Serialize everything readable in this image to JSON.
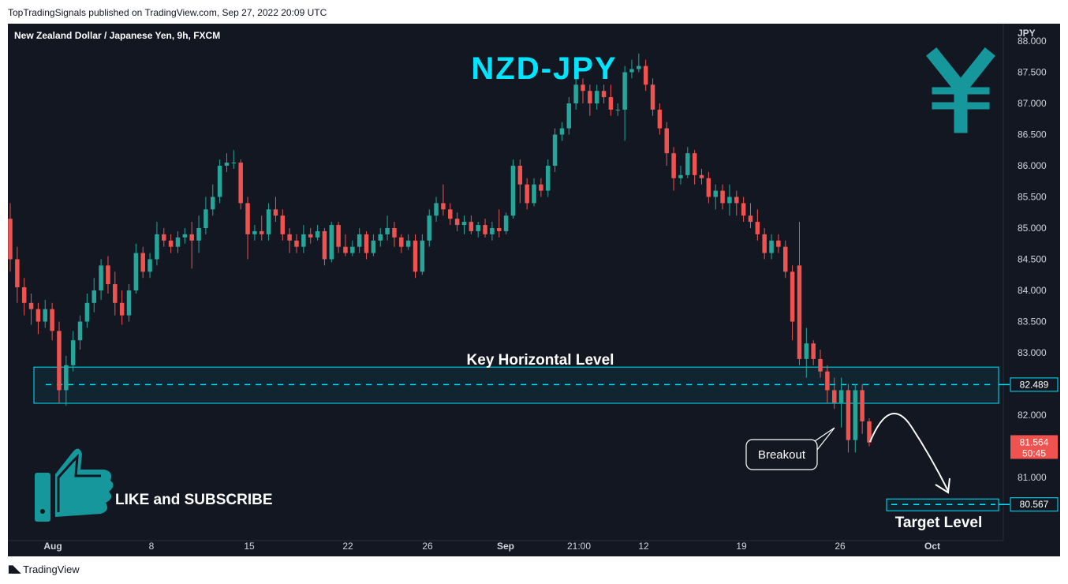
{
  "header": {
    "published_caption": "TopTradingSignals published on TradingView.com, Sep 27, 2022 20:09 UTC"
  },
  "footer": {
    "brand": "TradingView"
  },
  "colors": {
    "background": "#131722",
    "up": "#26a69a",
    "down": "#ef5350",
    "accent": "#00e5ff",
    "text": "#d1d4dc",
    "yen": "#15979b"
  },
  "icons": {
    "yen_symbol": "yen-icon",
    "thumbs_up": "thumbs-up-icon",
    "brand_logo": "tradingview-logo-icon"
  },
  "chart_data": {
    "type": "candlestick",
    "symbol_title": "New Zealand Dollar / Japanese Yen, 9h, FXCM",
    "headline": "NZD-JPY",
    "currency": "JPY",
    "y_ticks": [
      "88.000",
      "87.500",
      "87.000",
      "86.500",
      "86.000",
      "85.500",
      "85.000",
      "84.500",
      "84.000",
      "83.500",
      "83.000",
      "82.000",
      "81.000"
    ],
    "x_ticks": [
      "Aug",
      "8",
      "15",
      "22",
      "26",
      "Sep",
      "21:00",
      "12",
      "19",
      "26",
      "Oct"
    ],
    "ylim": [
      80.0,
      88.0
    ],
    "candles": [
      [
        85.15,
        84.5,
        85.4,
        84.3
      ],
      [
        84.5,
        84.05,
        84.7,
        83.8
      ],
      [
        84.05,
        83.8,
        84.2,
        83.6
      ],
      [
        83.8,
        83.7,
        83.95,
        83.45
      ],
      [
        83.7,
        83.5,
        83.8,
        83.3
      ],
      [
        83.5,
        83.7,
        83.85,
        83.4
      ],
      [
        83.7,
        83.35,
        83.8,
        83.2
      ],
      [
        83.35,
        82.4,
        83.5,
        82.2
      ],
      [
        82.4,
        82.8,
        82.95,
        82.15
      ],
      [
        82.8,
        83.2,
        83.35,
        82.7
      ],
      [
        83.2,
        83.5,
        83.6,
        83.05
      ],
      [
        83.5,
        83.8,
        83.95,
        83.4
      ],
      [
        83.8,
        84.0,
        84.2,
        83.65
      ],
      [
        84.0,
        84.4,
        84.5,
        83.85
      ],
      [
        84.4,
        84.1,
        84.55,
        83.95
      ],
      [
        84.1,
        83.8,
        84.3,
        83.6
      ],
      [
        83.8,
        83.6,
        84.0,
        83.45
      ],
      [
        83.6,
        84.0,
        84.1,
        83.5
      ],
      [
        84.0,
        84.6,
        84.75,
        83.95
      ],
      [
        84.6,
        84.3,
        84.7,
        84.2
      ],
      [
        84.3,
        84.5,
        84.6,
        84.2
      ],
      [
        84.5,
        84.9,
        85.1,
        84.4
      ],
      [
        84.9,
        84.8,
        85.0,
        84.7
      ],
      [
        84.8,
        84.7,
        84.9,
        84.6
      ],
      [
        84.7,
        84.85,
        84.95,
        84.6
      ],
      [
        84.85,
        84.9,
        85.0,
        84.75
      ],
      [
        84.9,
        84.8,
        85.1,
        84.35
      ],
      [
        84.8,
        85.0,
        85.2,
        84.6
      ],
      [
        85.0,
        85.3,
        85.5,
        84.9
      ],
      [
        85.3,
        85.5,
        85.7,
        85.2
      ],
      [
        85.5,
        86.0,
        86.1,
        85.4
      ],
      [
        86.0,
        86.05,
        86.2,
        85.9
      ],
      [
        86.05,
        86.05,
        86.25,
        85.95
      ],
      [
        86.05,
        85.4,
        86.1,
        85.3
      ],
      [
        85.4,
        84.9,
        85.5,
        84.5
      ],
      [
        84.9,
        84.95,
        85.05,
        84.8
      ],
      [
        84.95,
        84.9,
        85.2,
        84.8
      ],
      [
        84.9,
        85.3,
        85.4,
        84.8
      ],
      [
        85.3,
        85.2,
        85.5,
        85.1
      ],
      [
        85.2,
        84.9,
        85.3,
        84.8
      ],
      [
        84.9,
        84.8,
        85.0,
        84.6
      ],
      [
        84.8,
        84.7,
        84.9,
        84.6
      ],
      [
        84.7,
        84.9,
        85.05,
        84.6
      ],
      [
        84.9,
        84.85,
        85.0,
        84.75
      ],
      [
        84.85,
        84.95,
        85.05,
        84.8
      ],
      [
        84.95,
        84.5,
        85.0,
        84.4
      ],
      [
        84.5,
        85.05,
        85.1,
        84.45
      ],
      [
        85.05,
        84.7,
        85.1,
        84.6
      ],
      [
        84.7,
        84.6,
        84.9,
        84.55
      ],
      [
        84.6,
        84.7,
        84.8,
        84.55
      ],
      [
        84.7,
        84.9,
        85.0,
        84.6
      ],
      [
        84.9,
        84.6,
        84.95,
        84.5
      ],
      [
        84.6,
        84.8,
        84.9,
        84.55
      ],
      [
        84.8,
        84.9,
        85.0,
        84.7
      ],
      [
        84.9,
        85.0,
        85.2,
        84.8
      ],
      [
        85.0,
        84.85,
        85.1,
        84.7
      ],
      [
        84.85,
        84.7,
        84.9,
        84.6
      ],
      [
        84.7,
        84.8,
        84.9,
        84.65
      ],
      [
        84.8,
        84.3,
        84.9,
        84.2
      ],
      [
        84.3,
        84.8,
        84.9,
        84.25
      ],
      [
        84.8,
        85.2,
        85.3,
        84.7
      ],
      [
        85.2,
        85.4,
        85.5,
        85.1
      ],
      [
        85.4,
        85.3,
        85.7,
        85.2
      ],
      [
        85.3,
        85.15,
        85.4,
        85.05
      ],
      [
        85.15,
        85.05,
        85.25,
        84.95
      ],
      [
        85.05,
        85.1,
        85.2,
        84.9
      ],
      [
        85.1,
        84.95,
        85.2,
        84.9
      ],
      [
        84.95,
        85.05,
        85.1,
        84.85
      ],
      [
        85.05,
        84.9,
        85.15,
        84.85
      ],
      [
        84.9,
        85.0,
        85.1,
        84.8
      ],
      [
        85.0,
        84.95,
        85.3,
        84.85
      ],
      [
        84.95,
        85.2,
        85.25,
        84.9
      ],
      [
        85.2,
        86.0,
        86.1,
        85.15
      ],
      [
        86.0,
        85.7,
        86.1,
        85.4
      ],
      [
        85.7,
        85.4,
        85.8,
        85.3
      ],
      [
        85.4,
        85.7,
        85.8,
        85.35
      ],
      [
        85.7,
        85.6,
        85.8,
        85.5
      ],
      [
        85.6,
        86.0,
        86.1,
        85.5
      ],
      [
        86.0,
        86.5,
        86.6,
        85.9
      ],
      [
        86.5,
        86.6,
        86.7,
        86.4
      ],
      [
        86.6,
        87.0,
        87.1,
        86.5
      ],
      [
        87.0,
        87.3,
        87.5,
        86.9
      ],
      [
        87.3,
        87.2,
        87.4,
        87.0
      ],
      [
        87.2,
        87.0,
        87.3,
        86.8
      ],
      [
        87.0,
        87.2,
        87.3,
        86.9
      ],
      [
        87.2,
        87.1,
        87.3,
        87.0
      ],
      [
        87.1,
        86.9,
        87.3,
        86.8
      ],
      [
        86.9,
        86.9,
        87.0,
        86.8
      ],
      [
        86.9,
        87.5,
        87.6,
        86.4
      ],
      [
        87.5,
        87.55,
        87.7,
        87.4
      ],
      [
        87.55,
        87.6,
        87.8,
        87.5
      ],
      [
        87.6,
        87.3,
        87.7,
        87.2
      ],
      [
        87.3,
        86.9,
        87.4,
        86.8
      ],
      [
        86.9,
        86.6,
        87.0,
        86.5
      ],
      [
        86.6,
        86.2,
        86.7,
        86.0
      ],
      [
        86.2,
        85.8,
        86.3,
        85.6
      ],
      [
        85.8,
        85.85,
        86.0,
        85.7
      ],
      [
        85.85,
        86.2,
        86.3,
        85.8
      ],
      [
        86.2,
        85.85,
        86.25,
        85.7
      ],
      [
        85.85,
        85.8,
        85.95,
        85.7
      ],
      [
        85.8,
        85.5,
        85.9,
        85.4
      ],
      [
        85.5,
        85.6,
        85.7,
        85.3
      ],
      [
        85.6,
        85.4,
        85.7,
        85.3
      ],
      [
        85.4,
        85.5,
        85.7,
        85.2
      ],
      [
        85.5,
        85.4,
        85.6,
        85.2
      ],
      [
        85.4,
        85.2,
        85.5,
        85.1
      ],
      [
        85.2,
        85.1,
        85.4,
        85.0
      ],
      [
        85.1,
        84.9,
        85.3,
        84.8
      ],
      [
        84.9,
        84.6,
        85.0,
        84.5
      ],
      [
        84.6,
        84.8,
        84.9,
        84.5
      ],
      [
        84.8,
        84.7,
        84.9,
        84.6
      ],
      [
        84.7,
        84.3,
        84.8,
        84.2
      ],
      [
        84.3,
        83.5,
        84.4,
        83.2
      ],
      [
        84.4,
        82.9,
        85.1,
        82.8
      ],
      [
        82.9,
        83.15,
        83.4,
        82.6
      ],
      [
        83.15,
        82.9,
        83.2,
        82.8
      ],
      [
        82.9,
        82.7,
        83.05,
        82.6
      ],
      [
        82.7,
        82.4,
        82.8,
        82.2
      ],
      [
        82.4,
        82.2,
        82.6,
        82.1
      ],
      [
        82.2,
        82.4,
        82.6,
        81.8
      ],
      [
        82.4,
        81.6,
        82.5,
        81.4
      ],
      [
        81.6,
        82.4,
        82.5,
        81.4
      ],
      [
        82.4,
        81.9,
        82.5,
        81.7
      ],
      [
        81.9,
        81.56,
        81.95,
        81.5
      ]
    ],
    "levels": {
      "key_horizontal": {
        "label": "Key Horizontal Level",
        "price": "82.489",
        "zone": [
          82.19,
          82.77
        ]
      },
      "target": {
        "label": "Target Level",
        "price": "80.567"
      }
    },
    "last_price": "81.564",
    "countdown": "50:45",
    "annotations": {
      "breakout": "Breakout",
      "cta": "LIKE and SUBSCRIBE"
    }
  }
}
